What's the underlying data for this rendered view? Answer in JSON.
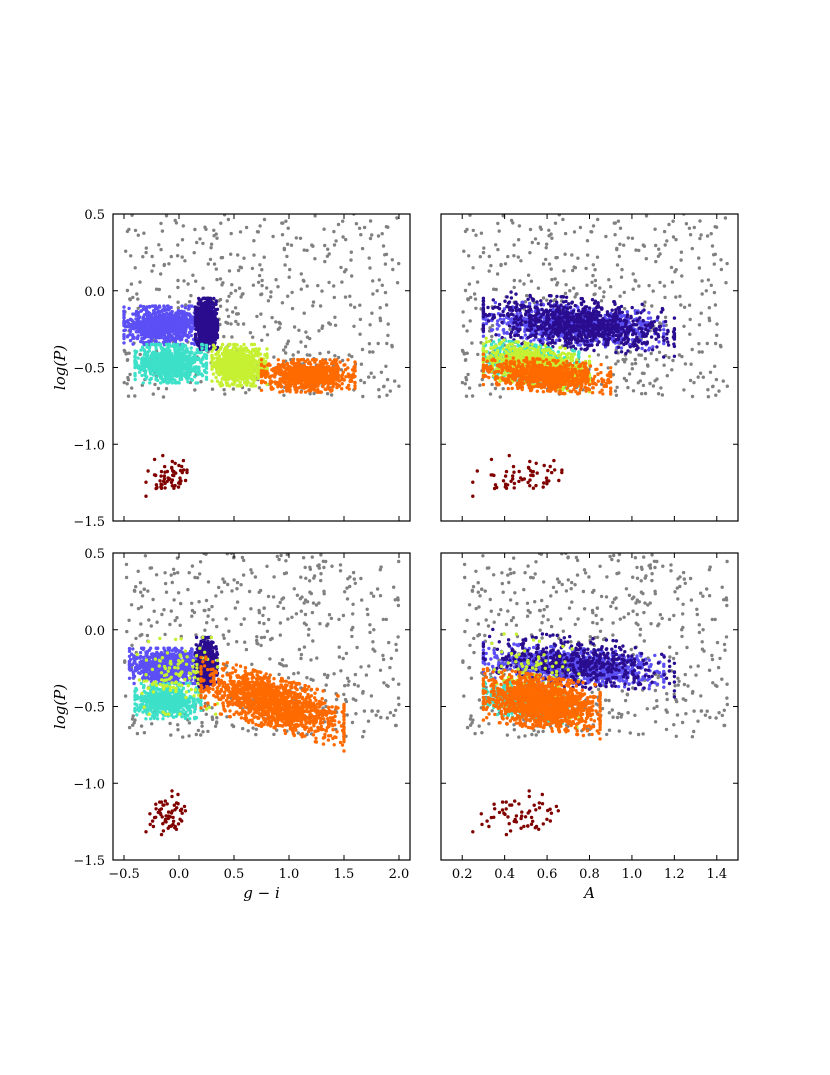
{
  "chart_data": {
    "type": "scatter",
    "grid": false,
    "legend": "none",
    "panels": [
      {
        "id": "top-left",
        "xaxis": {
          "key": "gi",
          "xlim": [
            -0.6,
            2.1
          ],
          "ticks": [],
          "label": ""
        },
        "yaxis": {
          "ylim": [
            -1.5,
            0.5
          ],
          "ticks": [
            "0.5",
            "0.0",
            "−0.5",
            "−1.0",
            "−1.5"
          ],
          "label": "log(P)"
        },
        "variant": "A"
      },
      {
        "id": "top-right",
        "xaxis": {
          "key": "amp",
          "xlim": [
            0.1,
            1.5
          ],
          "ticks": [],
          "label": ""
        },
        "yaxis": {
          "ylim": [
            -1.5,
            0.5
          ],
          "ticks": [],
          "label": ""
        },
        "variant": "A"
      },
      {
        "id": "bottom-left",
        "xaxis": {
          "key": "gi",
          "xlim": [
            -0.6,
            2.1
          ],
          "ticks": [
            "−0.5",
            "0.0",
            "0.5",
            "1.0",
            "1.5",
            "2.0"
          ],
          "label": "g − i"
        },
        "yaxis": {
          "ylim": [
            -1.5,
            0.5
          ],
          "ticks": [
            "0.5",
            "0.0",
            "−0.5",
            "−1.0",
            "−1.5"
          ],
          "label": "log(P)"
        },
        "variant": "B"
      },
      {
        "id": "bottom-right",
        "xaxis": {
          "key": "amp",
          "xlim": [
            0.1,
            1.5
          ],
          "ticks": [
            "0.2",
            "0.4",
            "0.6",
            "0.8",
            "1.0",
            "1.2",
            "1.4"
          ],
          "label": "A"
        },
        "yaxis": {
          "ylim": [
            -1.5,
            0.5
          ],
          "ticks": [],
          "label": ""
        },
        "variant": "B"
      }
    ],
    "groups": {
      "A": [
        {
          "color": "#808080",
          "n": 480,
          "gi": [
            -0.5,
            2.0
          ],
          "logp": [
            -0.7,
            0.5
          ],
          "amp": [
            0.2,
            1.45
          ],
          "corr": 0.0
        },
        {
          "color": "#5b4ff5",
          "n": 900,
          "gi": [
            -0.5,
            0.2
          ],
          "logp": [
            -0.35,
            -0.1
          ],
          "amp": [
            0.3,
            1.15
          ],
          "corr": 0.0
        },
        {
          "color": "#2a0d8f",
          "n": 900,
          "gi": [
            0.15,
            0.35
          ],
          "logp": [
            -0.38,
            -0.05
          ],
          "amp": [
            0.3,
            1.2
          ],
          "corr": 0.0
        },
        {
          "color": "#3de0c8",
          "n": 800,
          "gi": [
            -0.4,
            0.25
          ],
          "logp": [
            -0.6,
            -0.35
          ],
          "amp": [
            0.3,
            0.75
          ],
          "corr": 0.0
        },
        {
          "color": "#c6f032",
          "n": 800,
          "gi": [
            0.3,
            0.8
          ],
          "logp": [
            -0.62,
            -0.35
          ],
          "amp": [
            0.3,
            0.8
          ],
          "corr": 0.0
        },
        {
          "color": "#ff6a00",
          "n": 850,
          "gi": [
            0.75,
            1.6
          ],
          "logp": [
            -0.66,
            -0.45
          ],
          "amp": [
            0.3,
            0.9
          ],
          "corr": 0.0
        },
        {
          "color": "#800000",
          "n": 60,
          "gi": [
            -0.3,
            0.1
          ],
          "logp": [
            -1.35,
            -1.05
          ],
          "amp": [
            0.25,
            0.7
          ],
          "corr": 0.0
        }
      ],
      "B": [
        {
          "color": "#808080",
          "n": 480,
          "gi": [
            -0.5,
            2.0
          ],
          "logp": [
            -0.7,
            0.5
          ],
          "amp": [
            0.2,
            1.45
          ],
          "corr": 0.0
        },
        {
          "color": "#5b4ff5",
          "n": 900,
          "gi": [
            -0.45,
            0.2
          ],
          "logp": [
            -0.35,
            -0.12
          ],
          "amp": [
            0.3,
            1.15
          ],
          "corr": 0.0
        },
        {
          "color": "#2a0d8f",
          "n": 500,
          "gi": [
            0.15,
            0.35
          ],
          "logp": [
            -0.38,
            -0.05
          ],
          "amp": [
            0.3,
            1.2
          ],
          "corr": 0.0
        },
        {
          "color": "#3de0c8",
          "n": 600,
          "gi": [
            -0.4,
            0.2
          ],
          "logp": [
            -0.58,
            -0.35
          ],
          "amp": [
            0.3,
            0.7
          ],
          "corr": 0.0
        },
        {
          "color": "#c6f032",
          "n": 120,
          "gi": [
            -0.45,
            0.35
          ],
          "logp": [
            -0.55,
            -0.05
          ],
          "amp": [
            0.3,
            0.75
          ],
          "corr": 0.0
        },
        {
          "color": "#ff6a00",
          "n": 1400,
          "gi": [
            0.2,
            1.5
          ],
          "logp": [
            -0.65,
            -0.3
          ],
          "amp": [
            0.3,
            0.85
          ],
          "corr": -0.8
        },
        {
          "color": "#800000",
          "n": 60,
          "gi": [
            -0.3,
            0.1
          ],
          "logp": [
            -1.35,
            -1.05
          ],
          "amp": [
            0.25,
            0.7
          ],
          "corr": 0.0
        }
      ]
    }
  }
}
